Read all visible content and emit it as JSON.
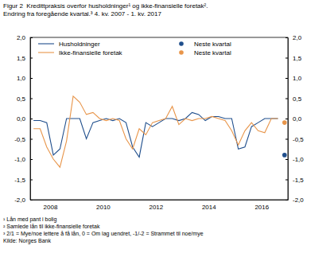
{
  "chart_data": {
    "type": "line",
    "title": "Figur 2  Kredittpraksis overfor husholdninger¹ og ikke-finansielle foretak².",
    "subtitle": "Endring fra foregående kvartal.³ 4. kv. 2007 - 1. kv. 2017",
    "notes": [
      "¹ Lån med pant i bolig",
      "² Samlede lån til ikke-finansielle foretak",
      "³ 2/1 = Mye/noe lettere å få lån, 0 = Om lag uendret, -1/-2 = Strammet til noe/mye",
      "Kilde: Norges Bank"
    ],
    "x": [
      2007.875,
      2008.125,
      2008.375,
      2008.625,
      2008.875,
      2009.125,
      2009.375,
      2009.625,
      2009.875,
      2010.125,
      2010.375,
      2010.625,
      2010.875,
      2011.125,
      2011.375,
      2011.625,
      2011.875,
      2012.125,
      2012.375,
      2012.625,
      2012.875,
      2013.125,
      2013.375,
      2013.625,
      2013.875,
      2014.125,
      2014.375,
      2014.625,
      2014.875,
      2015.125,
      2015.375,
      2015.625,
      2015.875,
      2016.125,
      2016.375,
      2016.625,
      2016.875,
      2017.125
    ],
    "series": [
      {
        "name": "Husholdninger",
        "type": "line",
        "color": "#1f4e8c",
        "values": [
          -0.05,
          -0.05,
          -0.1,
          -0.9,
          -0.75,
          0.0,
          0.0,
          0.0,
          -0.5,
          -0.1,
          -0.05,
          0.0,
          -0.05,
          0.0,
          -0.1,
          -0.7,
          -0.95,
          -0.1,
          -0.2,
          -0.1,
          0.0,
          0.0,
          -0.05,
          0.0,
          0.15,
          0.1,
          -0.05,
          0.05,
          0.05,
          0.0,
          0.0,
          -0.75,
          -0.7,
          -0.2,
          -0.1,
          0.0,
          0.0,
          0.0
        ]
      },
      {
        "name": "Ikke-finansielle foretak",
        "type": "line",
        "color": "#e8954a",
        "values": [
          -0.25,
          -0.25,
          -0.7,
          -1.0,
          -1.2,
          -0.55,
          0.55,
          0.4,
          0.1,
          0.15,
          0.0,
          -0.05,
          0.0,
          -0.05,
          -0.5,
          -0.75,
          -0.25,
          -0.4,
          -0.1,
          -0.05,
          0.0,
          0.3,
          -0.15,
          0.0,
          -0.05,
          0.0,
          0.0,
          0.05,
          0.0,
          -0.05,
          -0.3,
          -0.65,
          -0.3,
          -0.1,
          -0.3,
          -0.35,
          0.0,
          0.0
        ]
      },
      {
        "name": "Neste kvartal",
        "type": "scatter",
        "marker": "circle",
        "color": "#1f4e8c",
        "x": [
          2017.375
        ],
        "values": [
          -0.9
        ]
      },
      {
        "name": "Neste kvartal",
        "type": "scatter",
        "marker": "circle",
        "color": "#e8954a",
        "x": [
          2017.375
        ],
        "values": [
          -0.1
        ]
      }
    ],
    "xlim": [
      2007.75,
      2017.5
    ],
    "xticks": [
      {
        "value": 2008.5,
        "label": "2008"
      },
      {
        "value": 2010.5,
        "label": "2010"
      },
      {
        "value": 2012.5,
        "label": "2012"
      },
      {
        "value": 2014.5,
        "label": "2014"
      },
      {
        "value": 2016.5,
        "label": "2016"
      }
    ],
    "ylim": [
      -2,
      2
    ],
    "yticks": [
      {
        "value": 2,
        "label": "2,0"
      },
      {
        "value": 1.5,
        "label": "1,5"
      },
      {
        "value": 1,
        "label": "1,0"
      },
      {
        "value": 0.5,
        "label": "0,5"
      },
      {
        "value": 0,
        "label": "0,0"
      },
      {
        "value": -0.5,
        "label": "-0,5"
      },
      {
        "value": -1,
        "label": "-1,0"
      },
      {
        "value": -1.5,
        "label": "-1,5"
      },
      {
        "value": -2,
        "label": "-2,0"
      }
    ],
    "y2lim": [
      -2,
      2
    ],
    "y2ticks": [
      {
        "value": 2,
        "label": "2,0"
      },
      {
        "value": 1.5,
        "label": "1,5"
      },
      {
        "value": 1,
        "label": "1,0"
      },
      {
        "value": 0.5,
        "label": "0,5"
      },
      {
        "value": 0,
        "label": "0,0"
      },
      {
        "value": -0.5,
        "label": "-0,5"
      },
      {
        "value": -1,
        "label": "-1,0"
      },
      {
        "value": -1.5,
        "label": "-1,5"
      },
      {
        "value": -2,
        "label": "-2,0"
      }
    ],
    "grid": false,
    "legend": "top"
  }
}
